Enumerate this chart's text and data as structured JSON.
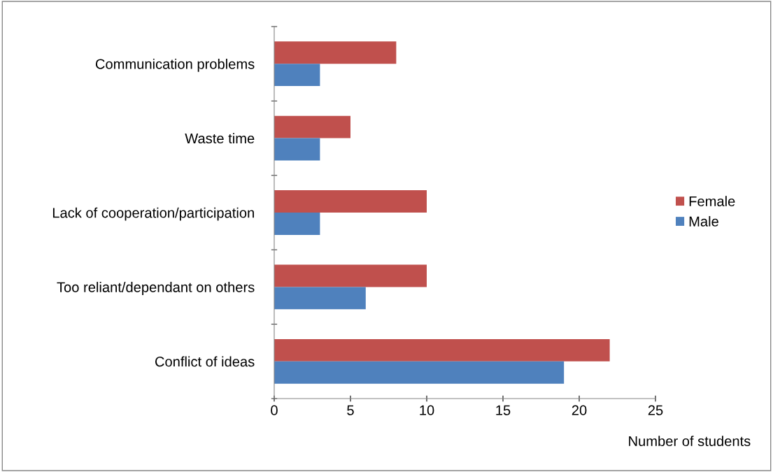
{
  "chart_data": {
    "type": "bar",
    "orientation": "horizontal",
    "xlabel": "Number of students",
    "categories": [
      "Communication problems",
      "Waste time",
      "Lack of cooperation/participation",
      "Too reliant/dependant on others",
      "Conflict of ideas"
    ],
    "series": [
      {
        "name": "Female",
        "color": "#c0504d",
        "values": [
          8,
          5,
          10,
          10,
          22
        ]
      },
      {
        "name": "Male",
        "color": "#4f81bd",
        "values": [
          3,
          3,
          3,
          6,
          19
        ]
      }
    ],
    "xlim": [
      0,
      25
    ],
    "xticks": [
      0,
      5,
      10,
      15,
      20,
      25
    ],
    "grid": false,
    "legend": "right"
  }
}
